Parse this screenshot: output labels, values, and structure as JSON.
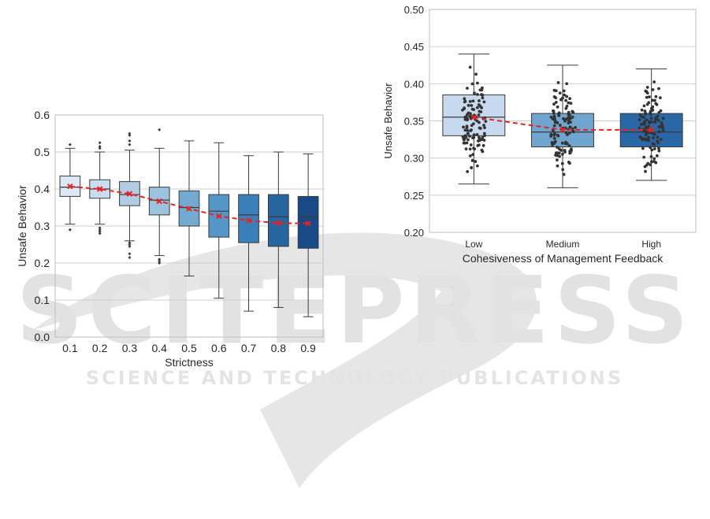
{
  "watermark": {
    "big": "SCITEPRESS",
    "small": "SCIENCE AND TECHNOLOGY PUBLICATIONS"
  },
  "chart_data": [
    {
      "type": "box",
      "xlabel": "Strictness",
      "ylabel": "Unsafe Behavior",
      "ylim": [
        0.0,
        0.6
      ],
      "yticks": [
        "0.0",
        "0.1",
        "0.2",
        "0.3",
        "0.4",
        "0.5",
        "0.6"
      ],
      "grid": true,
      "categories": [
        "0.1",
        "0.2",
        "0.3",
        "0.4",
        "0.5",
        "0.6",
        "0.7",
        "0.8",
        "0.9"
      ],
      "boxes": [
        {
          "q1": 0.38,
          "median": 0.405,
          "q3": 0.435,
          "whisker_low": 0.305,
          "whisker_high": 0.51,
          "fliers": [
            0.29,
            0.52
          ]
        },
        {
          "q1": 0.375,
          "median": 0.4,
          "q3": 0.425,
          "whisker_low": 0.305,
          "whisker_high": 0.5,
          "fliers": [
            0.28,
            0.285,
            0.29,
            0.295,
            0.51,
            0.515,
            0.525
          ]
        },
        {
          "q1": 0.355,
          "median": 0.385,
          "q3": 0.42,
          "whisker_low": 0.26,
          "whisker_high": 0.505,
          "fliers": [
            0.215,
            0.225,
            0.245,
            0.25,
            0.255,
            0.52,
            0.53,
            0.545,
            0.55
          ]
        },
        {
          "q1": 0.33,
          "median": 0.37,
          "q3": 0.405,
          "whisker_low": 0.22,
          "whisker_high": 0.51,
          "fliers": [
            0.2,
            0.205,
            0.21,
            0.56
          ]
        },
        {
          "q1": 0.3,
          "median": 0.35,
          "q3": 0.395,
          "whisker_low": 0.165,
          "whisker_high": 0.53,
          "fliers": []
        },
        {
          "q1": 0.27,
          "median": 0.34,
          "q3": 0.385,
          "whisker_low": 0.105,
          "whisker_high": 0.525,
          "fliers": []
        },
        {
          "q1": 0.255,
          "median": 0.33,
          "q3": 0.385,
          "whisker_low": 0.07,
          "whisker_high": 0.49,
          "fliers": []
        },
        {
          "q1": 0.245,
          "median": 0.325,
          "q3": 0.385,
          "whisker_low": 0.08,
          "whisker_high": 0.5,
          "fliers": []
        },
        {
          "q1": 0.24,
          "median": 0.325,
          "q3": 0.38,
          "whisker_low": 0.055,
          "whisker_high": 0.495,
          "fliers": []
        }
      ],
      "mean_line": [
        0.407,
        0.4,
        0.387,
        0.367,
        0.347,
        0.327,
        0.315,
        0.308,
        0.307
      ],
      "colors": [
        "#dbe8f5",
        "#cadcef",
        "#b2cde3",
        "#9cc3de",
        "#74a9d0",
        "#5596c8",
        "#3b7fba",
        "#27659f",
        "#174a87"
      ],
      "mean_color": "#e32424"
    },
    {
      "type": "box",
      "xlabel": "Cohesiveness of Management Feedback",
      "ylabel": "Unsafe Behavior",
      "ylim": [
        0.2,
        0.5
      ],
      "yticks": [
        "0.20",
        "0.25",
        "0.30",
        "0.35",
        "0.40",
        "0.45",
        "0.50"
      ],
      "grid": true,
      "categories": [
        "Low",
        "Medium",
        "High"
      ],
      "boxes": [
        {
          "q1": 0.33,
          "median": 0.355,
          "q3": 0.385,
          "whisker_low": 0.265,
          "whisker_high": 0.44,
          "fliers": []
        },
        {
          "q1": 0.315,
          "median": 0.335,
          "q3": 0.36,
          "whisker_low": 0.26,
          "whisker_high": 0.425,
          "fliers": []
        },
        {
          "q1": 0.315,
          "median": 0.335,
          "q3": 0.36,
          "whisker_low": 0.27,
          "whisker_high": 0.42,
          "fliers": []
        }
      ],
      "mean_line": [
        0.355,
        0.338,
        0.338
      ],
      "colors": [
        "#c6d9ee",
        "#6fa5cf",
        "#2a67a6"
      ],
      "mean_color": "#e32424",
      "swarm_point_color": "#333333"
    }
  ]
}
